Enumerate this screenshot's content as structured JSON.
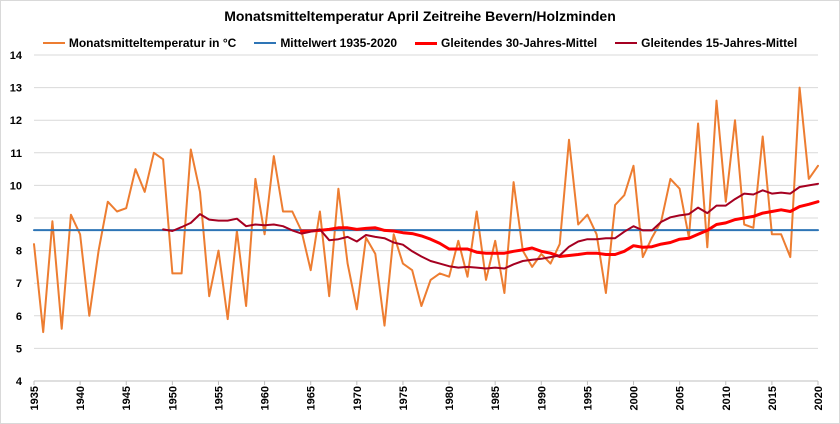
{
  "chart_data": {
    "type": "line",
    "title": "Monatsmitteltemperatur April Zeitreihe Bevern/Holzminden",
    "xlabel": "",
    "ylabel": "",
    "xlim": [
      1935,
      2020
    ],
    "ylim": [
      4,
      14
    ],
    "y_ticks": [
      "4",
      "5",
      "6",
      "7",
      "8",
      "9",
      "10",
      "11",
      "12",
      "13",
      "14"
    ],
    "x_ticks": [
      "1935",
      "1940",
      "1945",
      "1950",
      "1955",
      "1960",
      "1965",
      "1970",
      "1975",
      "1980",
      "1985",
      "1990",
      "1995",
      "2000",
      "2005",
      "2010",
      "2015",
      "2020"
    ],
    "grid": "horizontal",
    "legend_position": "top",
    "series": [
      {
        "name": "Monatsmitteltemperatur in °C",
        "color": "#ed7d31",
        "width": 2,
        "x": [
          1935,
          1936,
          1937,
          1938,
          1939,
          1940,
          1941,
          1942,
          1943,
          1944,
          1945,
          1946,
          1947,
          1948,
          1949,
          1950,
          1951,
          1952,
          1953,
          1954,
          1955,
          1956,
          1957,
          1958,
          1959,
          1960,
          1961,
          1962,
          1963,
          1964,
          1965,
          1966,
          1967,
          1968,
          1969,
          1970,
          1971,
          1972,
          1973,
          1974,
          1975,
          1976,
          1977,
          1978,
          1979,
          1980,
          1981,
          1982,
          1983,
          1984,
          1985,
          1986,
          1987,
          1988,
          1989,
          1990,
          1991,
          1992,
          1993,
          1994,
          1995,
          1996,
          1997,
          1998,
          1999,
          2000,
          2001,
          2002,
          2003,
          2004,
          2005,
          2006,
          2007,
          2008,
          2009,
          2010,
          2011,
          2012,
          2013,
          2014,
          2015,
          2016,
          2017,
          2018,
          2019,
          2020
        ],
        "values": [
          8.2,
          5.5,
          8.9,
          5.6,
          9.1,
          8.5,
          6.0,
          8.0,
          9.5,
          9.2,
          9.3,
          10.5,
          9.8,
          11.0,
          10.8,
          7.3,
          7.3,
          11.1,
          9.8,
          6.6,
          8.0,
          5.9,
          8.6,
          6.3,
          10.2,
          8.5,
          10.9,
          9.2,
          9.2,
          8.6,
          7.4,
          9.2,
          6.6,
          9.9,
          7.6,
          6.2,
          8.4,
          7.9,
          5.7,
          8.5,
          7.6,
          7.4,
          6.3,
          7.1,
          7.3,
          7.2,
          8.3,
          7.2,
          9.2,
          7.1,
          8.3,
          6.7,
          10.1,
          8.0,
          7.5,
          7.9,
          7.6,
          8.2,
          11.4,
          8.8,
          9.1,
          8.5,
          6.7,
          9.4,
          9.7,
          10.6,
          7.8,
          8.4,
          8.9,
          10.2,
          9.9,
          8.4,
          11.9,
          8.1,
          12.6,
          9.5,
          12.0,
          8.8,
          8.7,
          11.5,
          8.5,
          8.5,
          7.8,
          13.0,
          10.2,
          10.6
        ]
      },
      {
        "name": "Mittelwert 1935-2020",
        "color": "#2e75b6",
        "width": 2,
        "x": [
          1935,
          2020
        ],
        "values": [
          8.63,
          8.63
        ]
      },
      {
        "name": "Gleitendes 30-Jahres-Mittel",
        "color": "#ff0000",
        "width": 3,
        "x": [
          1964,
          1965,
          1966,
          1967,
          1968,
          1969,
          1970,
          1971,
          1972,
          1973,
          1974,
          1975,
          1976,
          1977,
          1978,
          1979,
          1980,
          1981,
          1982,
          1983,
          1984,
          1985,
          1986,
          1987,
          1988,
          1989,
          1990,
          1991,
          1992,
          1993,
          1994,
          1995,
          1996,
          1997,
          1998,
          1999,
          2000,
          2001,
          2002,
          2003,
          2004,
          2005,
          2006,
          2007,
          2008,
          2009,
          2010,
          2011,
          2012,
          2013,
          2014,
          2015,
          2016,
          2017,
          2018,
          2019,
          2020
        ],
        "values": [
          8.6,
          8.6,
          8.62,
          8.65,
          8.7,
          8.7,
          8.65,
          8.68,
          8.7,
          8.62,
          8.6,
          8.55,
          8.52,
          8.45,
          8.35,
          8.22,
          8.05,
          8.05,
          8.05,
          7.95,
          7.92,
          7.92,
          7.92,
          7.98,
          8.02,
          8.08,
          7.98,
          7.92,
          7.82,
          7.85,
          7.88,
          7.92,
          7.92,
          7.88,
          7.88,
          7.98,
          8.15,
          8.1,
          8.12,
          8.2,
          8.25,
          8.35,
          8.38,
          8.5,
          8.62,
          8.8,
          8.85,
          8.95,
          9.0,
          9.05,
          9.15,
          9.2,
          9.25,
          9.2,
          9.35,
          9.42,
          9.5
        ]
      },
      {
        "name": "Gleitendes 15-Jahres-Mittel",
        "color": "#a50021",
        "width": 2,
        "x": [
          1949,
          1950,
          1951,
          1952,
          1953,
          1954,
          1955,
          1956,
          1957,
          1958,
          1959,
          1960,
          1961,
          1962,
          1963,
          1964,
          1965,
          1966,
          1967,
          1968,
          1969,
          1970,
          1971,
          1972,
          1973,
          1974,
          1975,
          1976,
          1977,
          1978,
          1979,
          1980,
          1981,
          1982,
          1983,
          1984,
          1985,
          1986,
          1987,
          1988,
          1989,
          1990,
          1991,
          1992,
          1993,
          1994,
          1995,
          1996,
          1997,
          1998,
          1999,
          2000,
          2001,
          2002,
          2003,
          2004,
          2005,
          2006,
          2007,
          2008,
          2009,
          2010,
          2011,
          2012,
          2013,
          2014,
          2015,
          2016,
          2017,
          2018,
          2019,
          2020
        ],
        "values": [
          8.65,
          8.6,
          8.72,
          8.85,
          9.12,
          8.95,
          8.92,
          8.92,
          8.98,
          8.75,
          8.8,
          8.78,
          8.8,
          8.75,
          8.62,
          8.52,
          8.58,
          8.65,
          8.32,
          8.35,
          8.42,
          8.28,
          8.48,
          8.42,
          8.38,
          8.25,
          8.18,
          7.98,
          7.82,
          7.68,
          7.6,
          7.52,
          7.48,
          7.5,
          7.48,
          7.45,
          7.48,
          7.45,
          7.58,
          7.68,
          7.72,
          7.75,
          7.8,
          7.85,
          8.12,
          8.28,
          8.35,
          8.35,
          8.38,
          8.38,
          8.58,
          8.75,
          8.62,
          8.62,
          8.88,
          9.02,
          9.08,
          9.12,
          9.32,
          9.15,
          9.38,
          9.38,
          9.58,
          9.75,
          9.72,
          9.85,
          9.75,
          9.78,
          9.75,
          9.95,
          10.0,
          10.05
        ]
      }
    ]
  }
}
